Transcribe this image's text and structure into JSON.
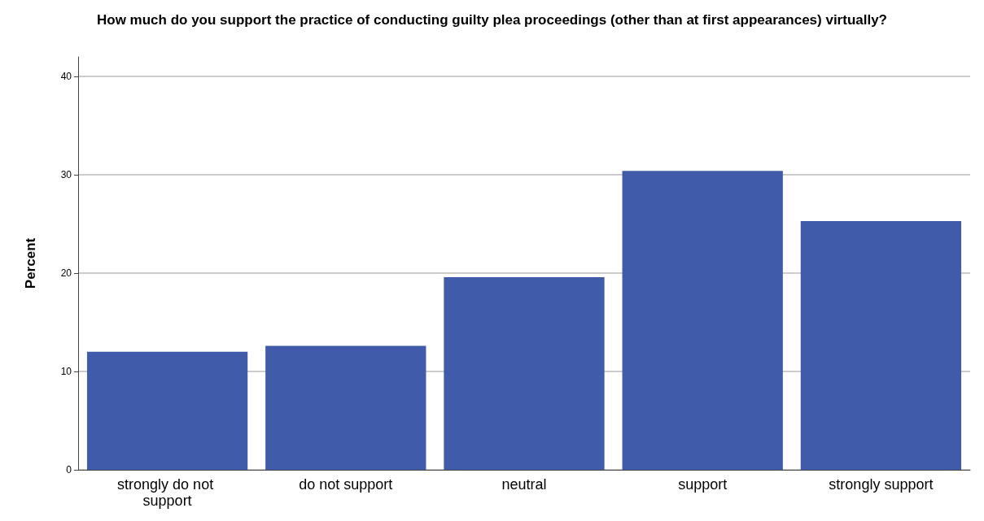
{
  "chart_data": {
    "type": "bar",
    "title": "How much do you support the practice of conducting guilty plea proceedings (other than at first appearances) virtually?",
    "ylabel": "Percent",
    "categories": [
      "strongly do not support",
      "do not support",
      "neutral",
      "support",
      "strongly support"
    ],
    "values": [
      12.0,
      12.6,
      19.6,
      30.4,
      25.3
    ],
    "color": "#3f5ba9",
    "ylim": [
      0,
      42
    ],
    "yticks": [
      0,
      10,
      20,
      30,
      40
    ],
    "grid": "y"
  }
}
